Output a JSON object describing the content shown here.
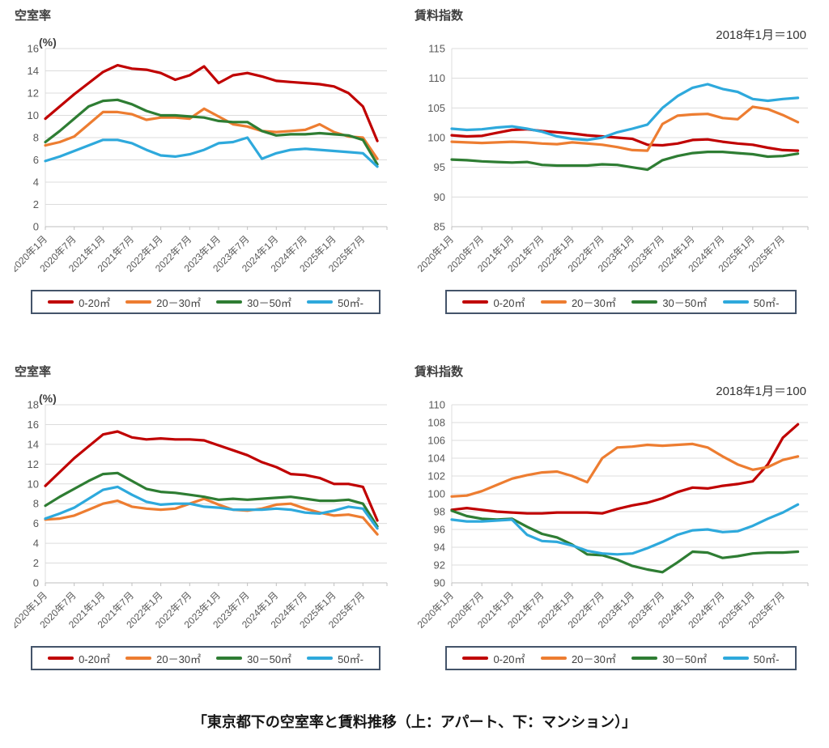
{
  "page": {
    "caption": "「東京都下の空室率と賃料推移（上：アパート、下：マンション）」"
  },
  "chart_data": [
    {
      "type": "line",
      "id": "vacancy-apartment",
      "title": "空室率",
      "ylabel": "(%)",
      "annotation": "",
      "ylim": [
        0,
        16
      ],
      "ytick_step": 2,
      "grid": true,
      "legend_position": "bottom",
      "x_tick_labels": [
        "2020年1月",
        "2020年7月",
        "2021年1月",
        "2021年7月",
        "2022年1月",
        "2022年7月",
        "2023年1月",
        "2023年7月",
        "2024年1月",
        "2024年7月",
        "2025年1月",
        "2025年7月"
      ],
      "categories": [
        "2020年1月",
        "2020年4月",
        "2020年7月",
        "2020年10月",
        "2021年1月",
        "2021年4月",
        "2021年7月",
        "2021年10月",
        "2022年1月",
        "2022年4月",
        "2022年7月",
        "2022年10月",
        "2023年1月",
        "2023年4月",
        "2023年7月",
        "2023年10月",
        "2024年1月",
        "2024年4月",
        "2024年7月",
        "2024年10月",
        "2025年1月",
        "2025年4月",
        "2025年7月",
        "2025年10月"
      ],
      "series": [
        {
          "name": "0-20㎡",
          "color": "#c00000",
          "values": [
            9.7,
            10.8,
            11.9,
            12.9,
            13.9,
            14.5,
            14.2,
            14.1,
            13.8,
            13.2,
            13.6,
            14.4,
            12.9,
            13.6,
            13.8,
            13.5,
            13.1,
            13.0,
            12.9,
            12.8,
            12.6,
            12.0,
            10.8,
            7.7
          ]
        },
        {
          "name": "20－30㎡",
          "color": "#ed7d31",
          "values": [
            7.3,
            7.6,
            8.1,
            9.2,
            10.3,
            10.3,
            10.1,
            9.6,
            9.8,
            9.8,
            9.7,
            10.6,
            9.9,
            9.2,
            9.0,
            8.6,
            8.5,
            8.6,
            8.7,
            9.2,
            8.5,
            8.1,
            8.0,
            6.1
          ]
        },
        {
          "name": "30－50㎡",
          "color": "#2e7d33",
          "values": [
            7.6,
            8.6,
            9.7,
            10.8,
            11.3,
            11.4,
            11.0,
            10.4,
            10.0,
            10.0,
            9.9,
            9.8,
            9.5,
            9.4,
            9.4,
            8.6,
            8.2,
            8.3,
            8.3,
            8.4,
            8.3,
            8.2,
            7.8,
            5.6
          ]
        },
        {
          "name": "50㎡-",
          "color": "#2ea9dc",
          "values": [
            5.9,
            6.3,
            6.8,
            7.3,
            7.8,
            7.8,
            7.5,
            6.9,
            6.4,
            6.3,
            6.5,
            6.9,
            7.5,
            7.6,
            8.0,
            6.1,
            6.6,
            6.9,
            7.0,
            6.9,
            6.8,
            6.7,
            6.6,
            5.4
          ]
        }
      ]
    },
    {
      "type": "line",
      "id": "rent-index-apartment",
      "title": "賃料指数",
      "ylabel": "",
      "annotation": "2018年1月＝100",
      "ylim": [
        85,
        115
      ],
      "ytick_step": 5,
      "grid": true,
      "legend_position": "bottom",
      "x_tick_labels": [
        "2020年1月",
        "2020年7月",
        "2021年1月",
        "2021年7月",
        "2022年1月",
        "2022年7月",
        "2023年1月",
        "2023年7月",
        "2024年1月",
        "2024年7月",
        "2025年1月",
        "2025年7月"
      ],
      "categories": [
        "2020年1月",
        "2020年4月",
        "2020年7月",
        "2020年10月",
        "2021年1月",
        "2021年4月",
        "2021年7月",
        "2021年10月",
        "2022年1月",
        "2022年4月",
        "2022年7月",
        "2022年10月",
        "2023年1月",
        "2023年4月",
        "2023年7月",
        "2023年10月",
        "2024年1月",
        "2024年4月",
        "2024年7月",
        "2024年10月",
        "2025年1月",
        "2025年4月",
        "2025年7月",
        "2025年10月"
      ],
      "series": [
        {
          "name": "0-20㎡",
          "color": "#c00000",
          "values": [
            100.4,
            100.2,
            100.3,
            100.8,
            101.3,
            101.4,
            101.1,
            100.9,
            100.7,
            100.4,
            100.2,
            100.0,
            99.8,
            98.8,
            98.7,
            99.0,
            99.6,
            99.7,
            99.3,
            99.0,
            98.8,
            98.3,
            97.9,
            97.8
          ]
        },
        {
          "name": "20－30㎡",
          "color": "#ed7d31",
          "values": [
            99.3,
            99.2,
            99.1,
            99.2,
            99.3,
            99.2,
            99.0,
            98.9,
            99.2,
            99.0,
            98.8,
            98.4,
            97.9,
            97.8,
            102.3,
            103.7,
            103.9,
            104.0,
            103.3,
            103.1,
            105.2,
            104.8,
            103.8,
            102.6
          ]
        },
        {
          "name": "30－50㎡",
          "color": "#2e7d33",
          "values": [
            96.3,
            96.2,
            96.0,
            95.9,
            95.8,
            95.9,
            95.4,
            95.3,
            95.3,
            95.3,
            95.5,
            95.4,
            95.0,
            94.6,
            96.2,
            96.9,
            97.4,
            97.6,
            97.6,
            97.4,
            97.2,
            96.8,
            96.9,
            97.3
          ]
        },
        {
          "name": "50㎡-",
          "color": "#2ea9dc",
          "values": [
            101.5,
            101.3,
            101.4,
            101.7,
            101.9,
            101.5,
            101.0,
            100.2,
            99.8,
            99.6,
            100.0,
            100.9,
            101.5,
            102.2,
            105.0,
            107.0,
            108.4,
            109.0,
            108.2,
            107.7,
            106.5,
            106.2,
            106.5,
            106.7
          ]
        }
      ]
    },
    {
      "type": "line",
      "id": "vacancy-mansion",
      "title": "空室率",
      "ylabel": "(%)",
      "annotation": "",
      "ylim": [
        0,
        18
      ],
      "ytick_step": 2,
      "grid": true,
      "legend_position": "bottom",
      "x_tick_labels": [
        "2020年1月",
        "2020年7月",
        "2021年1月",
        "2021年7月",
        "2022年1月",
        "2022年7月",
        "2023年1月",
        "2023年7月",
        "2024年1月",
        "2024年7月",
        "2025年1月",
        "2025年7月"
      ],
      "categories": [
        "2020年1月",
        "2020年4月",
        "2020年7月",
        "2020年10月",
        "2021年1月",
        "2021年4月",
        "2021年7月",
        "2021年10月",
        "2022年1月",
        "2022年4月",
        "2022年7月",
        "2022年10月",
        "2023年1月",
        "2023年4月",
        "2023年7月",
        "2023年10月",
        "2024年1月",
        "2024年4月",
        "2024年7月",
        "2024年10月",
        "2025年1月",
        "2025年4月",
        "2025年7月",
        "2025年10月"
      ],
      "series": [
        {
          "name": "0-20㎡",
          "color": "#c00000",
          "values": [
            9.8,
            11.2,
            12.6,
            13.8,
            15.0,
            15.3,
            14.7,
            14.5,
            14.6,
            14.5,
            14.5,
            14.4,
            13.9,
            13.4,
            12.9,
            12.2,
            11.7,
            11.0,
            10.9,
            10.6,
            10.0,
            10.0,
            9.7,
            6.3
          ]
        },
        {
          "name": "20－30㎡",
          "color": "#ed7d31",
          "values": [
            6.4,
            6.5,
            6.8,
            7.4,
            8.0,
            8.3,
            7.7,
            7.5,
            7.4,
            7.5,
            8.0,
            8.5,
            7.9,
            7.4,
            7.3,
            7.5,
            7.9,
            8.0,
            7.5,
            7.1,
            6.8,
            6.9,
            6.6,
            4.9
          ]
        },
        {
          "name": "30－50㎡",
          "color": "#2e7d33",
          "values": [
            7.8,
            8.7,
            9.5,
            10.3,
            11.0,
            11.1,
            10.3,
            9.5,
            9.2,
            9.1,
            8.9,
            8.7,
            8.4,
            8.5,
            8.4,
            8.5,
            8.6,
            8.7,
            8.5,
            8.3,
            8.3,
            8.4,
            8.0,
            5.7
          ]
        },
        {
          "name": "50㎡-",
          "color": "#2ea9dc",
          "values": [
            6.5,
            7.0,
            7.6,
            8.5,
            9.4,
            9.7,
            8.9,
            8.2,
            7.9,
            8.0,
            8.0,
            7.7,
            7.6,
            7.4,
            7.4,
            7.4,
            7.5,
            7.4,
            7.1,
            7.0,
            7.3,
            7.7,
            7.5,
            5.5
          ]
        }
      ]
    },
    {
      "type": "line",
      "id": "rent-index-mansion",
      "title": "賃料指数",
      "ylabel": "",
      "annotation": "2018年1月＝100",
      "ylim": [
        90,
        110
      ],
      "ytick_step": 2,
      "grid": true,
      "legend_position": "bottom",
      "x_tick_labels": [
        "2020年1月",
        "2020年7月",
        "2021年1月",
        "2021年7月",
        "2022年1月",
        "2022年7月",
        "2023年1月",
        "2023年7月",
        "2024年1月",
        "2024年7月",
        "2025年1月",
        "2025年7月"
      ],
      "categories": [
        "2020年1月",
        "2020年4月",
        "2020年7月",
        "2020年10月",
        "2021年1月",
        "2021年4月",
        "2021年7月",
        "2021年10月",
        "2022年1月",
        "2022年4月",
        "2022年7月",
        "2022年10月",
        "2023年1月",
        "2023年4月",
        "2023年7月",
        "2023年10月",
        "2024年1月",
        "2024年4月",
        "2024年7月",
        "2024年10月",
        "2025年1月",
        "2025年4月",
        "2025年7月",
        "2025年10月"
      ],
      "series": [
        {
          "name": "0-20㎡",
          "color": "#c00000",
          "values": [
            98.2,
            98.4,
            98.2,
            98.0,
            97.9,
            97.8,
            97.8,
            97.9,
            97.9,
            97.9,
            97.8,
            98.3,
            98.7,
            99.0,
            99.5,
            100.2,
            100.7,
            100.6,
            100.9,
            101.1,
            101.4,
            103.3,
            106.3,
            107.8
          ]
        },
        {
          "name": "20－30㎡",
          "color": "#ed7d31",
          "values": [
            99.7,
            99.8,
            100.3,
            101.0,
            101.7,
            102.1,
            102.4,
            102.5,
            102.0,
            101.3,
            104.0,
            105.2,
            105.3,
            105.5,
            105.4,
            105.5,
            105.6,
            105.2,
            104.2,
            103.3,
            102.7,
            103.0,
            103.8,
            104.2
          ]
        },
        {
          "name": "30－50㎡",
          "color": "#2e7d33",
          "values": [
            98.1,
            97.5,
            97.2,
            97.1,
            97.2,
            96.3,
            95.5,
            95.1,
            94.3,
            93.2,
            93.1,
            92.6,
            91.9,
            91.5,
            91.2,
            92.3,
            93.5,
            93.4,
            92.8,
            93.0,
            93.3,
            93.4,
            93.4,
            93.5
          ]
        },
        {
          "name": "50㎡-",
          "color": "#2ea9dc",
          "values": [
            97.1,
            96.9,
            96.9,
            97.0,
            97.1,
            95.4,
            94.7,
            94.6,
            94.2,
            93.6,
            93.3,
            93.2,
            93.3,
            93.9,
            94.6,
            95.4,
            95.9,
            96.0,
            95.7,
            95.8,
            96.4,
            97.2,
            97.9,
            98.8
          ]
        }
      ]
    }
  ],
  "style": {
    "grid_color": "#dcdcdc",
    "axis_color": "#bfbfbf",
    "tick_text_color": "#595959",
    "legend_border_color": "#44546a"
  }
}
